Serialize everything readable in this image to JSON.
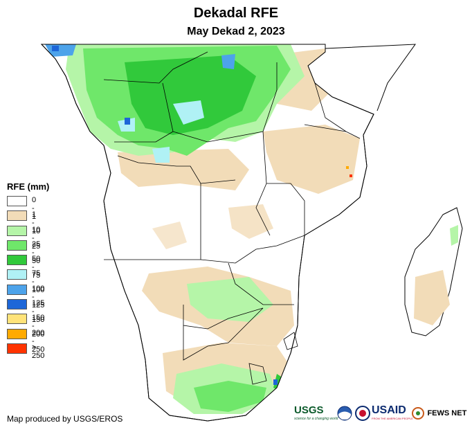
{
  "title": "Dekadal RFE",
  "subtitle": "May Dekad 2, 2023",
  "legend": {
    "title": "RFE (mm)",
    "items": [
      {
        "label": "0 - 1",
        "color": "#ffffff"
      },
      {
        "label": "1 - 10",
        "color": "#f2dcb8"
      },
      {
        "label": "10 - 25",
        "color": "#b5f5a8"
      },
      {
        "label": "25 - 50",
        "color": "#6fe76a"
      },
      {
        "label": "50 - 75",
        "color": "#31c93b"
      },
      {
        "label": "75 - 100",
        "color": "#b0f1f5"
      },
      {
        "label": "100 - 125",
        "color": "#4da3ea"
      },
      {
        "label": "125 - 150",
        "color": "#1d66d8"
      },
      {
        "label": "150 - 200",
        "color": "#ffe37a"
      },
      {
        "label": "200 - 250",
        "color": "#ffaa00"
      },
      {
        "label": "> 250",
        "color": "#ff3300"
      }
    ]
  },
  "credit": "Map produced by USGS/EROS",
  "logos": {
    "usgs": "USGS",
    "usgs_tagline": "science for a changing world",
    "usaid": "USAID",
    "usaid_tagline": "FROM THE AMERICAN PEOPLE",
    "fews": "FEWS NET"
  },
  "colors": {
    "border": "#000000",
    "usgs_green": "#0b5a2b",
    "usaid_blue": "#0b2a6f",
    "usaid_red": "#c8102e"
  }
}
